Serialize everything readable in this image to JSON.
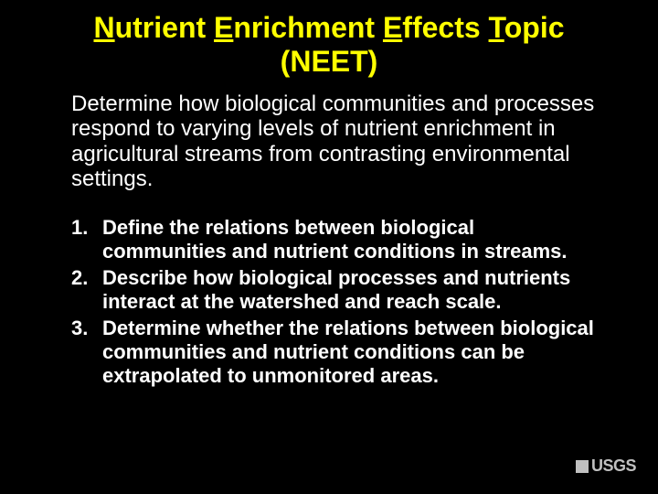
{
  "colors": {
    "background": "#000000",
    "title_color": "#ffff00",
    "body_color": "#ffffff",
    "logo_color": "#c0c0c0"
  },
  "typography": {
    "title_fontsize": 32,
    "intro_fontsize": 24,
    "list_fontsize": 22,
    "logo_fontsize": 18,
    "title_weight": "bold",
    "list_weight": "bold",
    "intro_weight": "normal"
  },
  "title": {
    "words": [
      {
        "initial": "N",
        "rest": "utrient"
      },
      {
        "initial": "E",
        "rest": "nrichment"
      },
      {
        "initial": "E",
        "rest": "ffects"
      },
      {
        "initial": "T",
        "rest": "opic"
      }
    ],
    "acronym": "(NEET)"
  },
  "intro": "Determine how biological communities and processes respond to varying levels of nutrient enrichment in agricultural streams from contrasting environmental settings.",
  "list": [
    {
      "num": "1.",
      "text": "Define the relations between biological communities and nutrient conditions in streams."
    },
    {
      "num": "2.",
      "text": "Describe how biological processes and nutrients interact at the watershed and reach scale."
    },
    {
      "num": "3.",
      "text": "Determine whether the relations between biological communities and nutrient conditions can be extrapolated to unmonitored areas."
    }
  ],
  "logo": {
    "text": "USGS",
    "square_size": 14
  }
}
